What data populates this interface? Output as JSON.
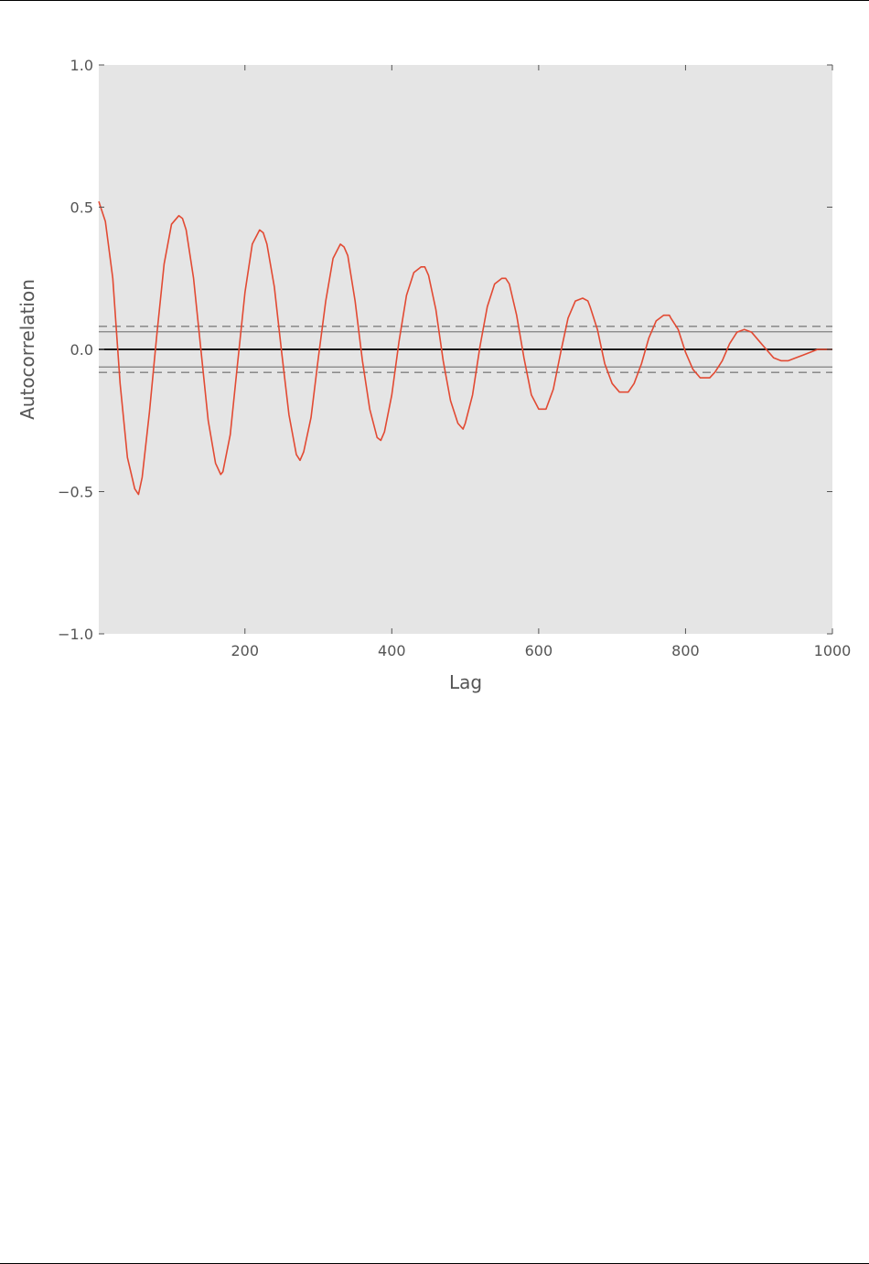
{
  "chart_data": {
    "type": "line",
    "title": "",
    "xlabel": "Lag",
    "ylabel": "Autocorrelation",
    "xlim": [
      1,
      1000
    ],
    "ylim": [
      -1.0,
      1.0
    ],
    "xticks": [
      200,
      400,
      600,
      800,
      1000
    ],
    "xtick_labels": [
      "200",
      "400",
      "600",
      "800",
      "1000"
    ],
    "yticks": [
      1.0,
      0.5,
      0.0,
      -0.5,
      -1.0
    ],
    "ytick_labels": [
      "1.0",
      "0.5",
      "0.0",
      "−0.5",
      "−1.0"
    ],
    "grid": false,
    "background": "#e5e5e5",
    "colors": {
      "series": "#e24a33",
      "zero_line": "#000000",
      "bands": "#808080"
    },
    "reference_lines": [
      {
        "y": 0.0,
        "style": "solid"
      },
      {
        "y": 0.062,
        "style": "solid"
      },
      {
        "y": -0.062,
        "style": "solid"
      },
      {
        "y": 0.081,
        "style": "dashed"
      },
      {
        "y": -0.081,
        "style": "dashed"
      }
    ],
    "series": [
      {
        "x": [
          1,
          10,
          20,
          30,
          40,
          50,
          55,
          60,
          70,
          80,
          90,
          100,
          110,
          115,
          120,
          130,
          140,
          150,
          160,
          167,
          170,
          180,
          190,
          200,
          210,
          220,
          225,
          230,
          240,
          250,
          260,
          270,
          275,
          280,
          290,
          300,
          310,
          320,
          330,
          335,
          340,
          350,
          360,
          370,
          380,
          385,
          390,
          400,
          410,
          420,
          430,
          440,
          445,
          450,
          460,
          470,
          480,
          490,
          497,
          500,
          510,
          520,
          530,
          540,
          550,
          555,
          560,
          570,
          580,
          590,
          600,
          610,
          620,
          630,
          640,
          650,
          660,
          667,
          670,
          680,
          690,
          700,
          710,
          722,
          730,
          740,
          750,
          760,
          770,
          778,
          780,
          790,
          800,
          810,
          820,
          833,
          840,
          850,
          860,
          870,
          880,
          890,
          900,
          910,
          920,
          930,
          940,
          950,
          960,
          970,
          980,
          990,
          1000
        ],
        "values": [
          0.52,
          0.45,
          0.25,
          -0.12,
          -0.38,
          -0.49,
          -0.51,
          -0.45,
          -0.22,
          0.05,
          0.3,
          0.44,
          0.47,
          0.46,
          0.42,
          0.25,
          0.0,
          -0.25,
          -0.4,
          -0.44,
          -0.43,
          -0.3,
          -0.05,
          0.2,
          0.37,
          0.42,
          0.41,
          0.37,
          0.22,
          -0.01,
          -0.23,
          -0.37,
          -0.39,
          -0.36,
          -0.24,
          -0.03,
          0.17,
          0.32,
          0.37,
          0.36,
          0.33,
          0.17,
          -0.04,
          -0.21,
          -0.31,
          -0.32,
          -0.29,
          -0.16,
          0.03,
          0.19,
          0.27,
          0.29,
          0.29,
          0.26,
          0.14,
          -0.04,
          -0.18,
          -0.26,
          -0.28,
          -0.26,
          -0.16,
          0.01,
          0.15,
          0.23,
          0.25,
          0.25,
          0.23,
          0.12,
          -0.03,
          -0.16,
          -0.21,
          -0.21,
          -0.14,
          -0.01,
          0.11,
          0.17,
          0.18,
          0.17,
          0.15,
          0.07,
          -0.05,
          -0.12,
          -0.15,
          -0.15,
          -0.12,
          -0.05,
          0.04,
          0.1,
          0.12,
          0.12,
          0.11,
          0.07,
          -0.01,
          -0.07,
          -0.1,
          -0.1,
          -0.08,
          -0.04,
          0.02,
          0.06,
          0.07,
          0.06,
          0.03,
          0.0,
          -0.03,
          -0.04,
          -0.04,
          -0.03,
          -0.02,
          -0.01,
          0.0,
          0.0,
          0.0
        ]
      }
    ]
  }
}
